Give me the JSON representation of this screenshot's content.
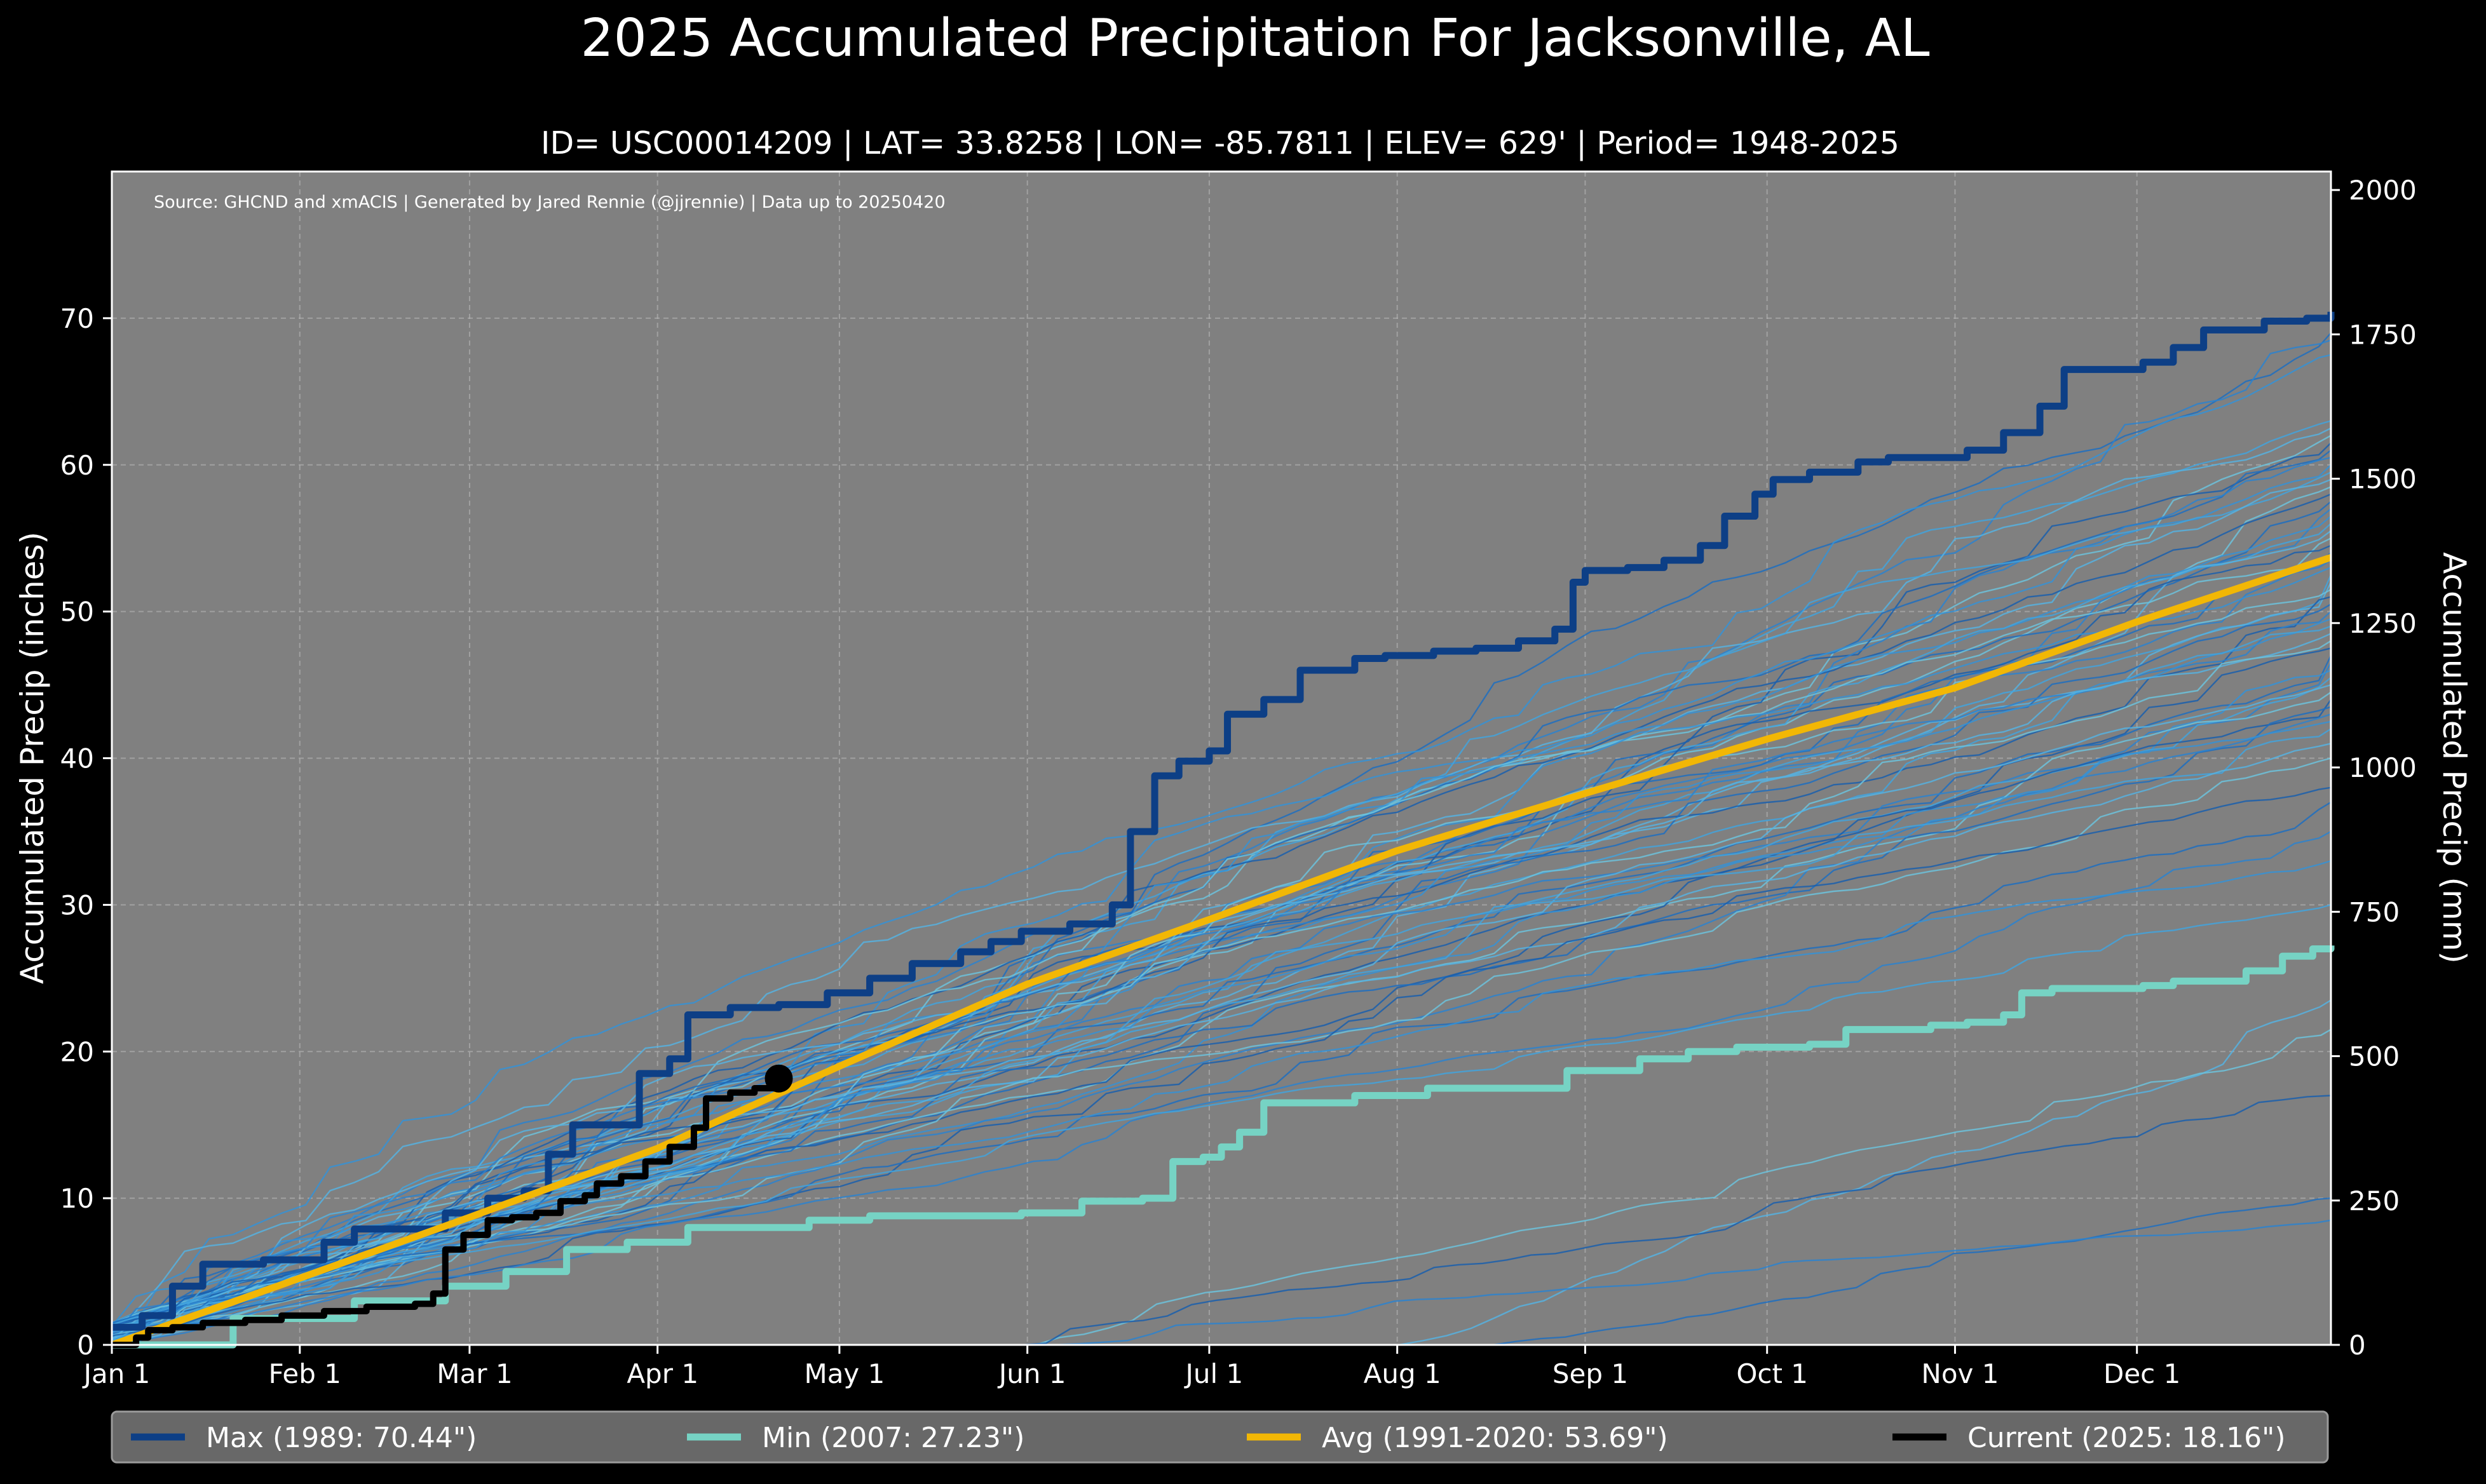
{
  "chart_data": {
    "type": "line",
    "title": "2025 Accumulated Precipitation For Jacksonville, AL",
    "subtitle": "ID= USC00014209 | LAT= 33.8258 | LON= -85.7811 | ELEV= 629' | Period= 1948-2025",
    "source_note": "Source: GHCND and xmACIS | Generated by Jared Rennie (@jjrennie) | Data up to 20250420",
    "ylabel_left": "Accumulated Precip (inches)",
    "ylabel_right": "Accumulated Precip (mm)",
    "xlim_day": [
      0,
      366
    ],
    "ylim_in": [
      0,
      80
    ],
    "grid": true,
    "x_ticks": [
      {
        "label": "Jan 1",
        "day": 0
      },
      {
        "label": "Feb 1",
        "day": 31
      },
      {
        "label": "Mar 1",
        "day": 59
      },
      {
        "label": "Apr 1",
        "day": 90
      },
      {
        "label": "May 1",
        "day": 120
      },
      {
        "label": "Jun 1",
        "day": 151
      },
      {
        "label": "Jul 1",
        "day": 181
      },
      {
        "label": "Aug 1",
        "day": 212
      },
      {
        "label": "Sep 1",
        "day": 243
      },
      {
        "label": "Oct 1",
        "day": 273
      },
      {
        "label": "Nov 1",
        "day": 304
      },
      {
        "label": "Dec 1",
        "day": 334
      }
    ],
    "y_ticks_left": [
      0,
      10,
      20,
      30,
      40,
      50,
      60,
      70
    ],
    "y_ticks_right": [
      0,
      250,
      500,
      750,
      1000,
      1250,
      1500,
      1750,
      2000
    ],
    "colors": {
      "figure_bg": "#000000",
      "plot_bg": "#808080",
      "grid": "#b8b8b8",
      "max": "#0d3f86",
      "min": "#76d3c4",
      "avg": "#f2b705",
      "current": "#000000",
      "legend_bg": "#686868",
      "history_palette": [
        "#1e6fc0",
        "#2b82cf",
        "#3592d6",
        "#42a3dd",
        "#56b2e0",
        "#6cc2dc",
        "#1a5fad"
      ]
    },
    "series": [
      {
        "name": "Max",
        "label": "Max (1989:  70.44\")",
        "role": "max",
        "points": [
          [
            0,
            1.2
          ],
          [
            5,
            2
          ],
          [
            10,
            4
          ],
          [
            15,
            5.5
          ],
          [
            25,
            5.8
          ],
          [
            35,
            7
          ],
          [
            40,
            7.9
          ],
          [
            48,
            7.9
          ],
          [
            55,
            9
          ],
          [
            62,
            10
          ],
          [
            68,
            10.5
          ],
          [
            72,
            13
          ],
          [
            76,
            15
          ],
          [
            82,
            15
          ],
          [
            87,
            18.5
          ],
          [
            92,
            19.5
          ],
          [
            95,
            22.5
          ],
          [
            102,
            23
          ],
          [
            110,
            23.2
          ],
          [
            118,
            24
          ],
          [
            125,
            25
          ],
          [
            132,
            26
          ],
          [
            140,
            26.8
          ],
          [
            145,
            27.5
          ],
          [
            150,
            28.2
          ],
          [
            158,
            28.7
          ],
          [
            165,
            30
          ],
          [
            168,
            35
          ],
          [
            172,
            38.8
          ],
          [
            176,
            39.8
          ],
          [
            181,
            40.5
          ],
          [
            184,
            43
          ],
          [
            190,
            44
          ],
          [
            196,
            46
          ],
          [
            205,
            46.8
          ],
          [
            210,
            47
          ],
          [
            218,
            47.3
          ],
          [
            225,
            47.5
          ],
          [
            232,
            48
          ],
          [
            238,
            48.8
          ],
          [
            241,
            52
          ],
          [
            243,
            52.8
          ],
          [
            250,
            53
          ],
          [
            256,
            53.5
          ],
          [
            262,
            54.5
          ],
          [
            266,
            56.5
          ],
          [
            271,
            58
          ],
          [
            274,
            59
          ],
          [
            280,
            59.5
          ],
          [
            288,
            60.2
          ],
          [
            293,
            60.5
          ],
          [
            300,
            60.5
          ],
          [
            306,
            61
          ],
          [
            312,
            62.2
          ],
          [
            318,
            64
          ],
          [
            322,
            66.5
          ],
          [
            326,
            66.5
          ],
          [
            335,
            67
          ],
          [
            340,
            68
          ],
          [
            345,
            69.2
          ],
          [
            355,
            69.8
          ],
          [
            362,
            70
          ],
          [
            366,
            70.44
          ]
        ]
      },
      {
        "name": "Min",
        "label": "Min (2007:  27.23\")",
        "role": "min",
        "points": [
          [
            0,
            0
          ],
          [
            20,
            1.8
          ],
          [
            40,
            3
          ],
          [
            55,
            4
          ],
          [
            65,
            5
          ],
          [
            75,
            6.5
          ],
          [
            85,
            7
          ],
          [
            95,
            8
          ],
          [
            115,
            8.5
          ],
          [
            125,
            8.8
          ],
          [
            150,
            9
          ],
          [
            160,
            9.8
          ],
          [
            170,
            10
          ],
          [
            175,
            12.5
          ],
          [
            180,
            12.8
          ],
          [
            183,
            13.5
          ],
          [
            186,
            14.5
          ],
          [
            190,
            16.5
          ],
          [
            205,
            17
          ],
          [
            217,
            17.5
          ],
          [
            235,
            17.5
          ],
          [
            240,
            18.7
          ],
          [
            252,
            19.5
          ],
          [
            260,
            20
          ],
          [
            268,
            20.3
          ],
          [
            280,
            20.5
          ],
          [
            286,
            21.5
          ],
          [
            300,
            21.8
          ],
          [
            306,
            22
          ],
          [
            312,
            22.5
          ],
          [
            315,
            24
          ],
          [
            320,
            24.3
          ],
          [
            335,
            24.5
          ],
          [
            340,
            24.8
          ],
          [
            352,
            25.5
          ],
          [
            358,
            26.5
          ],
          [
            363,
            27
          ],
          [
            366,
            27.23
          ]
        ]
      },
      {
        "name": "Avg",
        "label": "Avg (1991-2020:  53.69\")",
        "role": "avg",
        "points": [
          [
            0,
            0
          ],
          [
            30,
            4.4
          ],
          [
            59,
            8.7
          ],
          [
            90,
            13.4
          ],
          [
            120,
            19
          ],
          [
            151,
            24.6
          ],
          [
            181,
            29
          ],
          [
            212,
            33.7
          ],
          [
            243,
            37.6
          ],
          [
            273,
            41.3
          ],
          [
            304,
            44.8
          ],
          [
            334,
            49.3
          ],
          [
            366,
            53.69
          ]
        ]
      },
      {
        "name": "Current",
        "label": "Current (2025:  18.16\")",
        "role": "current",
        "points": [
          [
            0,
            0
          ],
          [
            4,
            0.5
          ],
          [
            6,
            1
          ],
          [
            10,
            1.2
          ],
          [
            15,
            1.5
          ],
          [
            22,
            1.7
          ],
          [
            28,
            2
          ],
          [
            35,
            2.3
          ],
          [
            42,
            2.6
          ],
          [
            50,
            2.8
          ],
          [
            53,
            3.5
          ],
          [
            55,
            6.5
          ],
          [
            58,
            7.5
          ],
          [
            62,
            8.5
          ],
          [
            66,
            8.7
          ],
          [
            70,
            9
          ],
          [
            74,
            9.8
          ],
          [
            78,
            10.2
          ],
          [
            80,
            11
          ],
          [
            84,
            11.5
          ],
          [
            88,
            12.5
          ],
          [
            92,
            13.5
          ],
          [
            96,
            14.8
          ],
          [
            98,
            16.8
          ],
          [
            102,
            17.2
          ],
          [
            106,
            17.5
          ],
          [
            110,
            18.16
          ]
        ],
        "marker_day": 110,
        "marker_value": 18.16
      }
    ],
    "history_ensemble": {
      "note": "thin lines, one per year 1948-2025 (approximate final totals, inches)",
      "final_totals": [
        69.0,
        68.5,
        67.5,
        63.0,
        62.5,
        62.0,
        61.5,
        61.0,
        60.5,
        60.0,
        59.5,
        59.0,
        58.5,
        58.0,
        57.5,
        57.0,
        56.5,
        56.0,
        55.5,
        55.0,
        54.5,
        54.0,
        53.5,
        53.0,
        52.5,
        52.0,
        51.5,
        51.0,
        50.5,
        50.0,
        49.5,
        49.0,
        48.5,
        48.0,
        47.5,
        47.0,
        46.5,
        46.0,
        45.5,
        45.0,
        44.5,
        44.0,
        43.5,
        43.0,
        42.5,
        42.0,
        41.0,
        40.0,
        38.0,
        37.0,
        35.0,
        33.0,
        30.0,
        23.5,
        21.5,
        17.0,
        10.0,
        8.5
      ]
    },
    "legend": [
      {
        "label": "Max (1989:  70.44\")",
        "role": "max"
      },
      {
        "label": "Min (2007:  27.23\")",
        "role": "min"
      },
      {
        "label": "Avg (1991-2020:  53.69\")",
        "role": "avg"
      },
      {
        "label": "Current (2025:  18.16\")",
        "role": "current"
      }
    ]
  }
}
